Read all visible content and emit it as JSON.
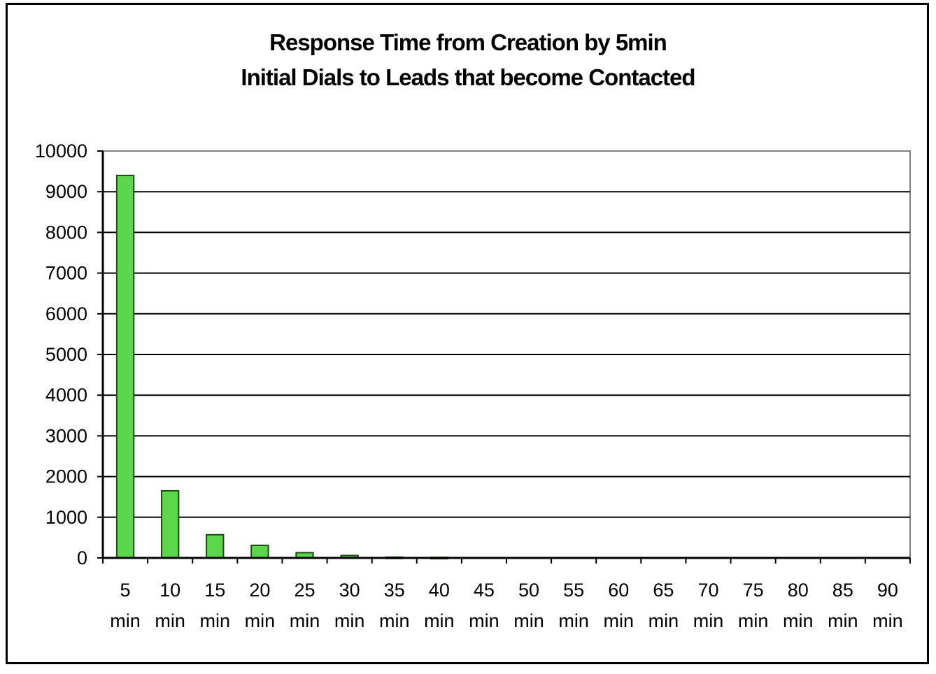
{
  "chart_data": {
    "type": "bar",
    "title": "Response Time from Creation by 5min",
    "subtitle": "Initial Dials to Leads that become Contacted",
    "xlabel": "",
    "ylabel": "",
    "categories": [
      "5 min",
      "10 min",
      "15 min",
      "20 min",
      "25 min",
      "30 min",
      "35 min",
      "40 min",
      "45 min",
      "50 min",
      "55 min",
      "60 min",
      "65 min",
      "70 min",
      "75 min",
      "80 min",
      "85 min",
      "90 min"
    ],
    "values": [
      9400,
      1650,
      570,
      310,
      130,
      60,
      20,
      15,
      0,
      0,
      0,
      0,
      0,
      0,
      0,
      0,
      0,
      0
    ],
    "ylim": [
      0,
      10000
    ],
    "yticks": [
      "0",
      "1000",
      "2000",
      "3000",
      "4000",
      "5000",
      "6000",
      "7000",
      "8000",
      "9000",
      "10000"
    ],
    "grid": true,
    "legend": "none",
    "colors": {
      "bar_fill": "#5cd64a",
      "bar_stroke": "#1a4d12",
      "gridline": "#000000",
      "plot_border": "#808080"
    }
  }
}
